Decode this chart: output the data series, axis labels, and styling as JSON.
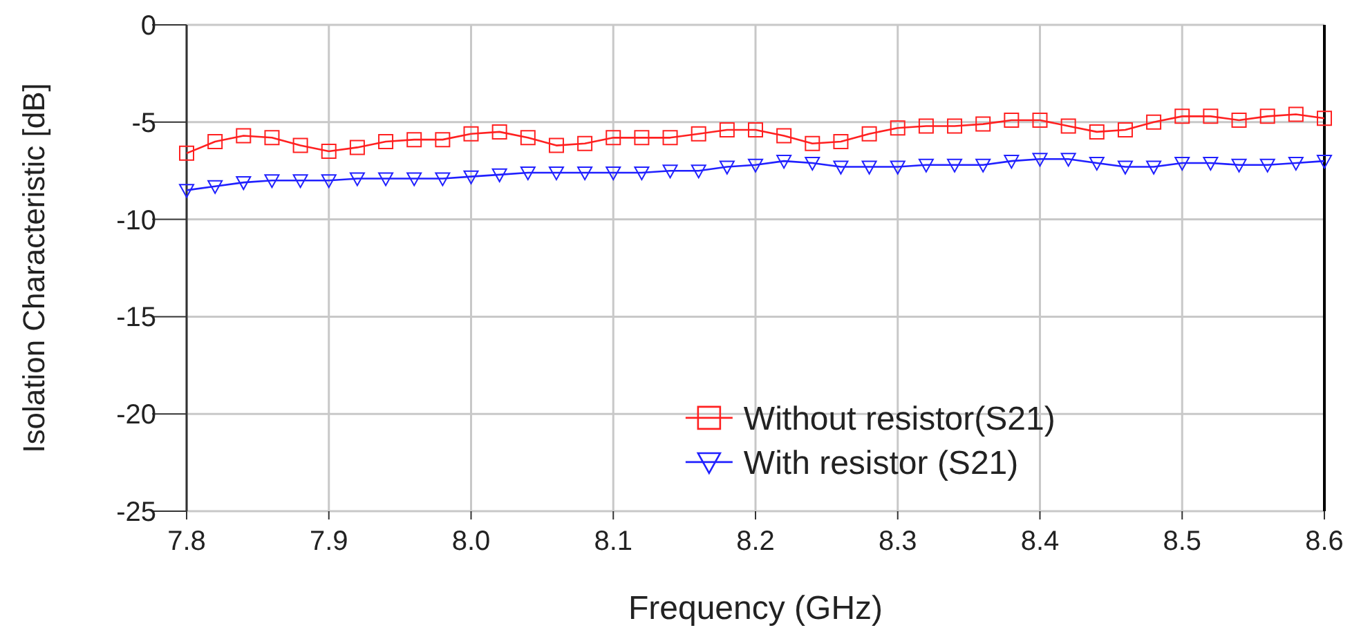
{
  "chart_data": {
    "type": "line",
    "xlabel": "Frequency (GHz)",
    "ylabel": "Isolation Characteristic [dB]",
    "x": [
      7.8,
      7.82,
      7.84,
      7.86,
      7.88,
      7.9,
      7.92,
      7.94,
      7.96,
      7.98,
      8.0,
      8.02,
      8.04,
      8.06,
      8.08,
      8.1,
      8.12,
      8.14,
      8.16,
      8.18,
      8.2,
      8.22,
      8.24,
      8.26,
      8.28,
      8.3,
      8.32,
      8.34,
      8.36,
      8.38,
      8.4,
      8.42,
      8.44,
      8.46,
      8.48,
      8.5,
      8.52,
      8.54,
      8.56,
      8.58,
      8.6
    ],
    "series": [
      {
        "name": "Without resistor(S21)",
        "color": "#ff2020",
        "marker": "square",
        "values": [
          -6.6,
          -6.0,
          -5.7,
          -5.8,
          -6.2,
          -6.5,
          -6.3,
          -6.0,
          -5.9,
          -5.9,
          -5.6,
          -5.5,
          -5.8,
          -6.2,
          -6.1,
          -5.8,
          -5.8,
          -5.8,
          -5.6,
          -5.4,
          -5.4,
          -5.7,
          -6.1,
          -6.0,
          -5.6,
          -5.3,
          -5.2,
          -5.2,
          -5.1,
          -4.9,
          -4.9,
          -5.2,
          -5.5,
          -5.4,
          -5.0,
          -4.7,
          -4.7,
          -4.9,
          -4.7,
          -4.6,
          -4.8
        ]
      },
      {
        "name": "With resistor (S21)",
        "color": "#2020ff",
        "marker": "triangle",
        "values": [
          -8.5,
          -8.3,
          -8.1,
          -8.0,
          -8.0,
          -8.0,
          -7.9,
          -7.9,
          -7.9,
          -7.9,
          -7.8,
          -7.7,
          -7.6,
          -7.6,
          -7.6,
          -7.6,
          -7.6,
          -7.5,
          -7.5,
          -7.3,
          -7.2,
          -7.0,
          -7.1,
          -7.3,
          -7.3,
          -7.3,
          -7.2,
          -7.2,
          -7.2,
          -7.0,
          -6.9,
          -6.9,
          -7.1,
          -7.3,
          -7.3,
          -7.1,
          -7.1,
          -7.2,
          -7.2,
          -7.1,
          -7.0
        ]
      }
    ],
    "xlim": [
      7.8,
      8.6
    ],
    "xticks": [
      7.8,
      7.9,
      {
        "value": 8,
        "label": "8.0"
      },
      8.1,
      8.2,
      8.3,
      8.4,
      8.5,
      8.6
    ],
    "ylim": [
      -25,
      0
    ],
    "yticks": [
      0,
      -5,
      -10,
      -15,
      -20,
      -25
    ],
    "grid": true,
    "legend": "bottom right",
    "line_style": "solid"
  }
}
